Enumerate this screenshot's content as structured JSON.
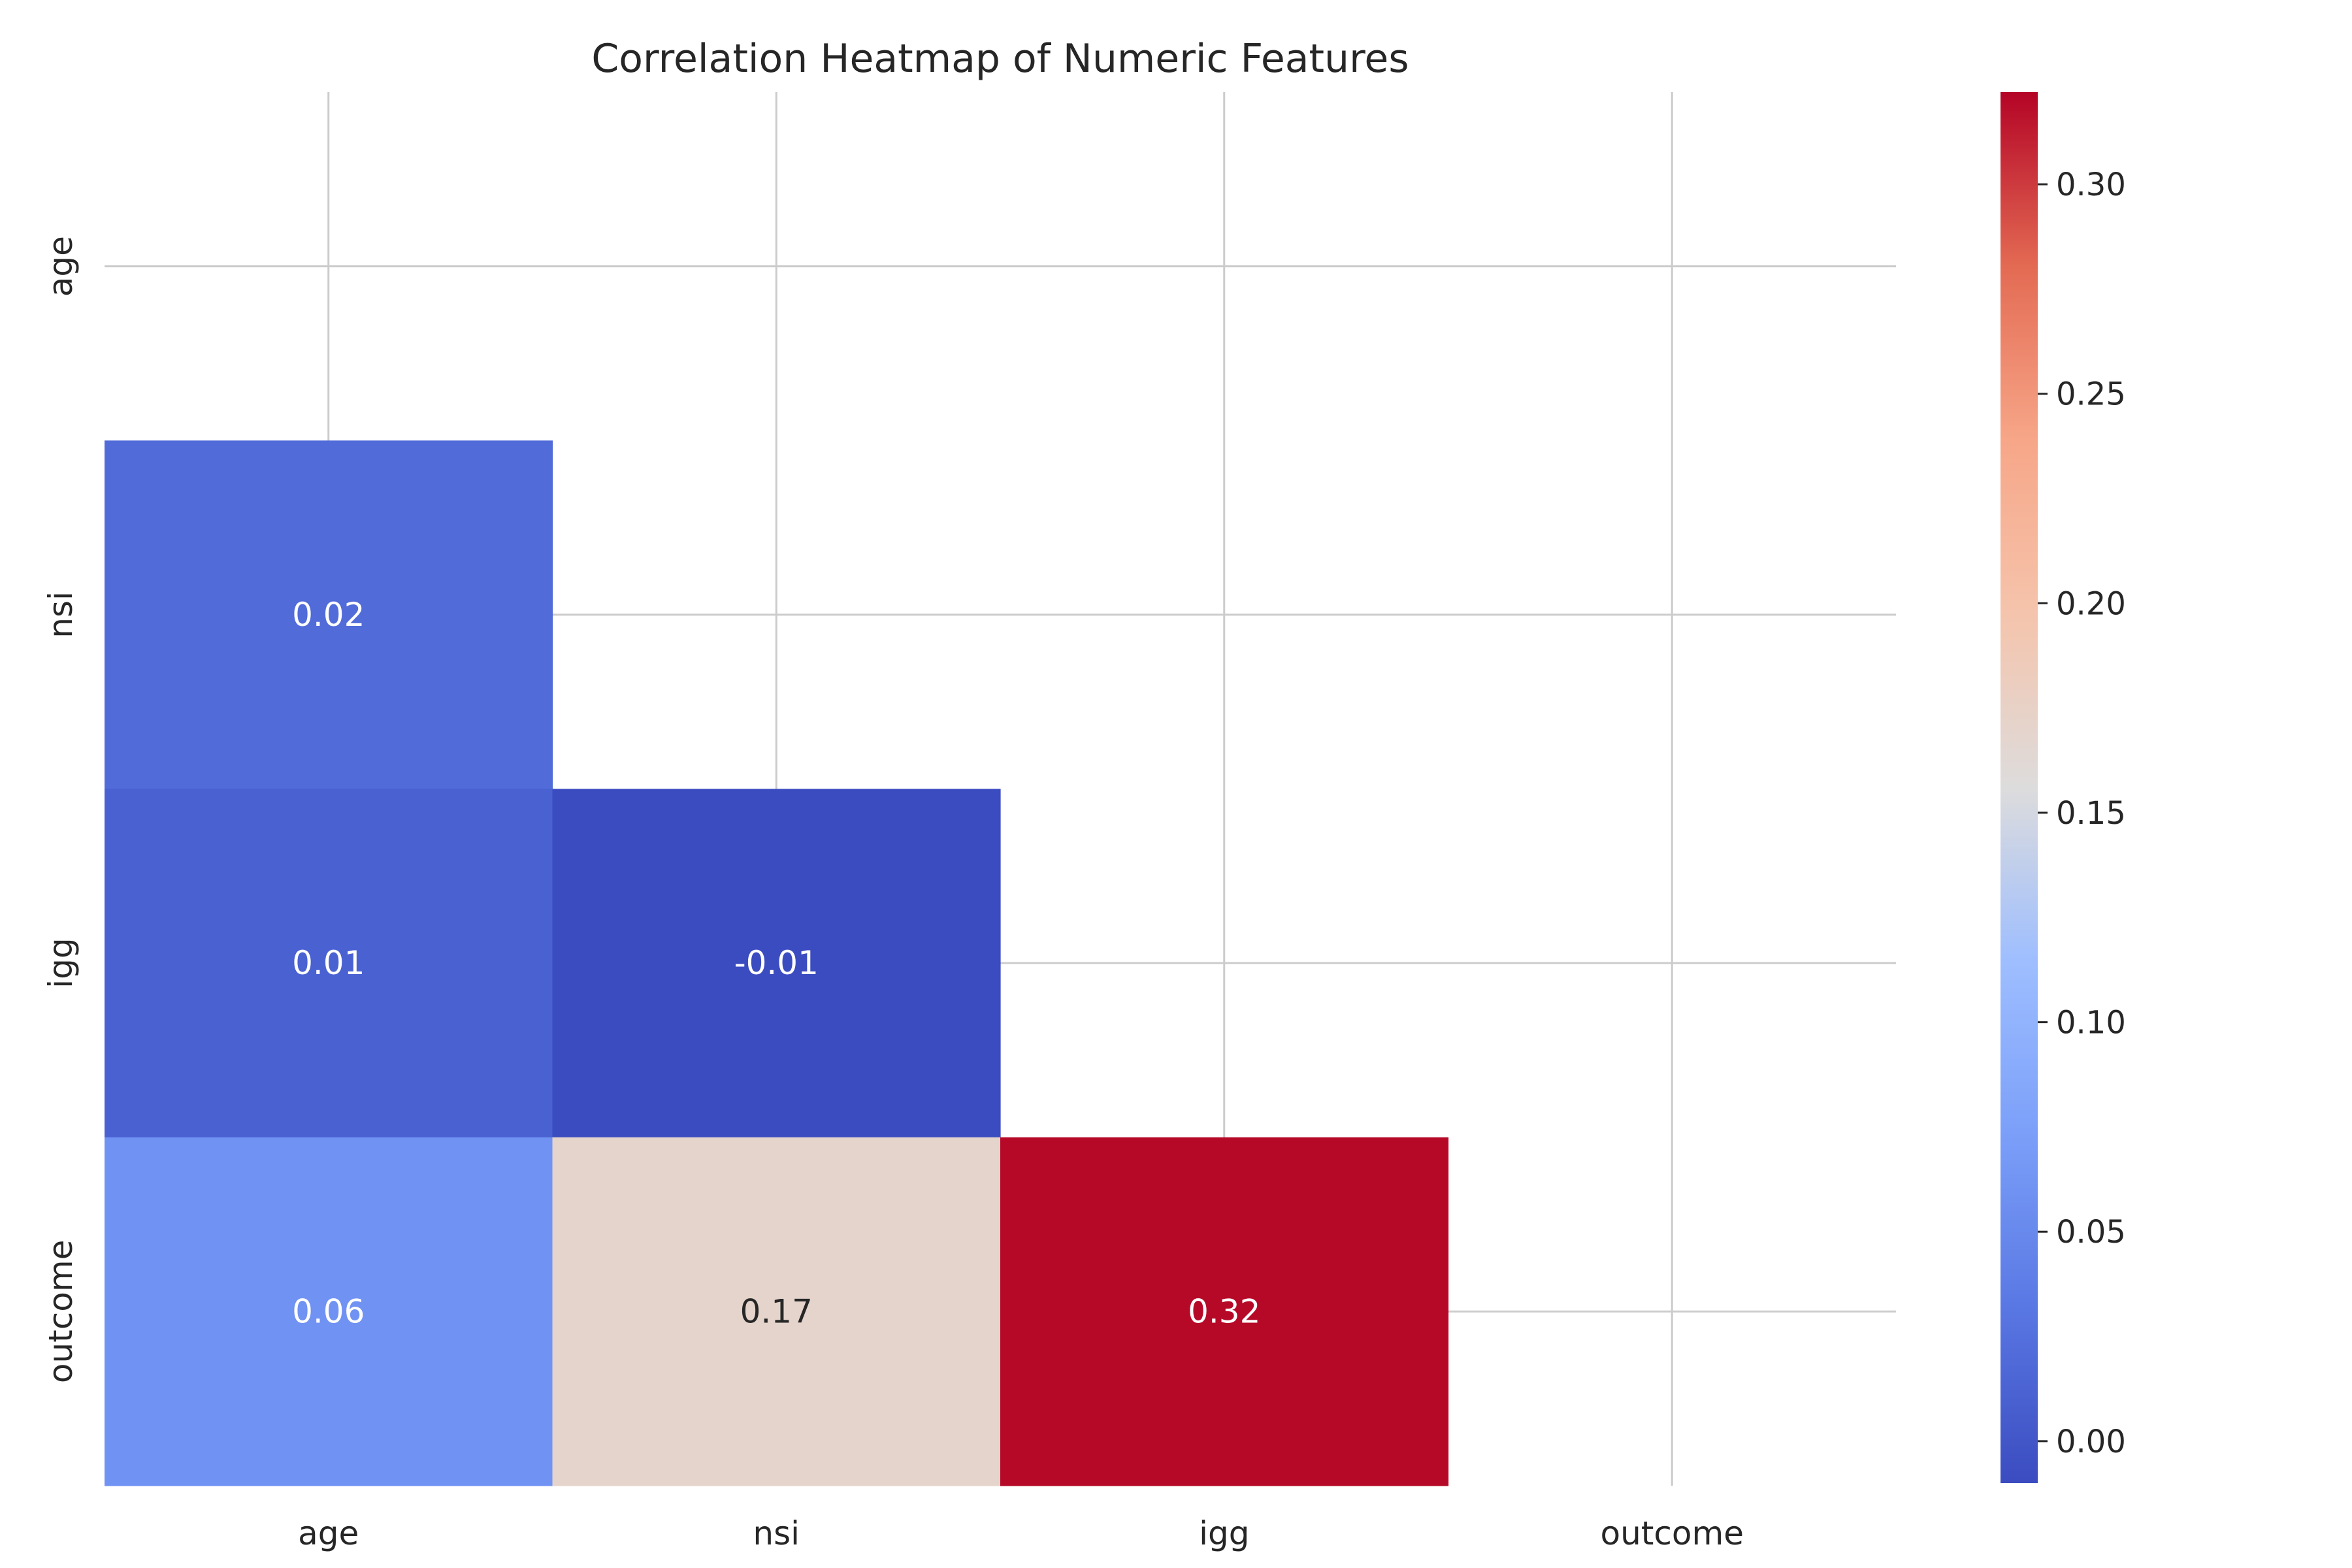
{
  "chart_data": {
    "type": "heatmap",
    "title": "Correlation Heatmap of Numeric Features",
    "xlabel": "",
    "ylabel": "",
    "x_categories": [
      "age",
      "nsi",
      "igg",
      "outcome"
    ],
    "y_categories": [
      "age",
      "nsi",
      "igg",
      "outcome"
    ],
    "mask": "upper-triangle-including-diagonal",
    "cells": [
      {
        "row": "nsi",
        "col": "age",
        "value": 0.02,
        "label": "0.02"
      },
      {
        "row": "igg",
        "col": "age",
        "value": 0.01,
        "label": "0.01"
      },
      {
        "row": "igg",
        "col": "nsi",
        "value": -0.01,
        "label": "-0.01"
      },
      {
        "row": "outcome",
        "col": "age",
        "value": 0.06,
        "label": "0.06"
      },
      {
        "row": "outcome",
        "col": "nsi",
        "value": 0.17,
        "label": "0.17"
      },
      {
        "row": "outcome",
        "col": "igg",
        "value": 0.32,
        "label": "0.32"
      }
    ],
    "colormap": "coolwarm",
    "vmin": -0.01,
    "vmax": 0.322,
    "grid": true,
    "colorbar": {
      "placement": "right",
      "ticks": [
        0.0,
        0.05,
        0.1,
        0.15,
        0.2,
        0.25,
        0.3
      ],
      "tick_labels": [
        "0.00",
        "0.05",
        "0.10",
        "0.15",
        "0.20",
        "0.25",
        "0.30"
      ]
    }
  }
}
